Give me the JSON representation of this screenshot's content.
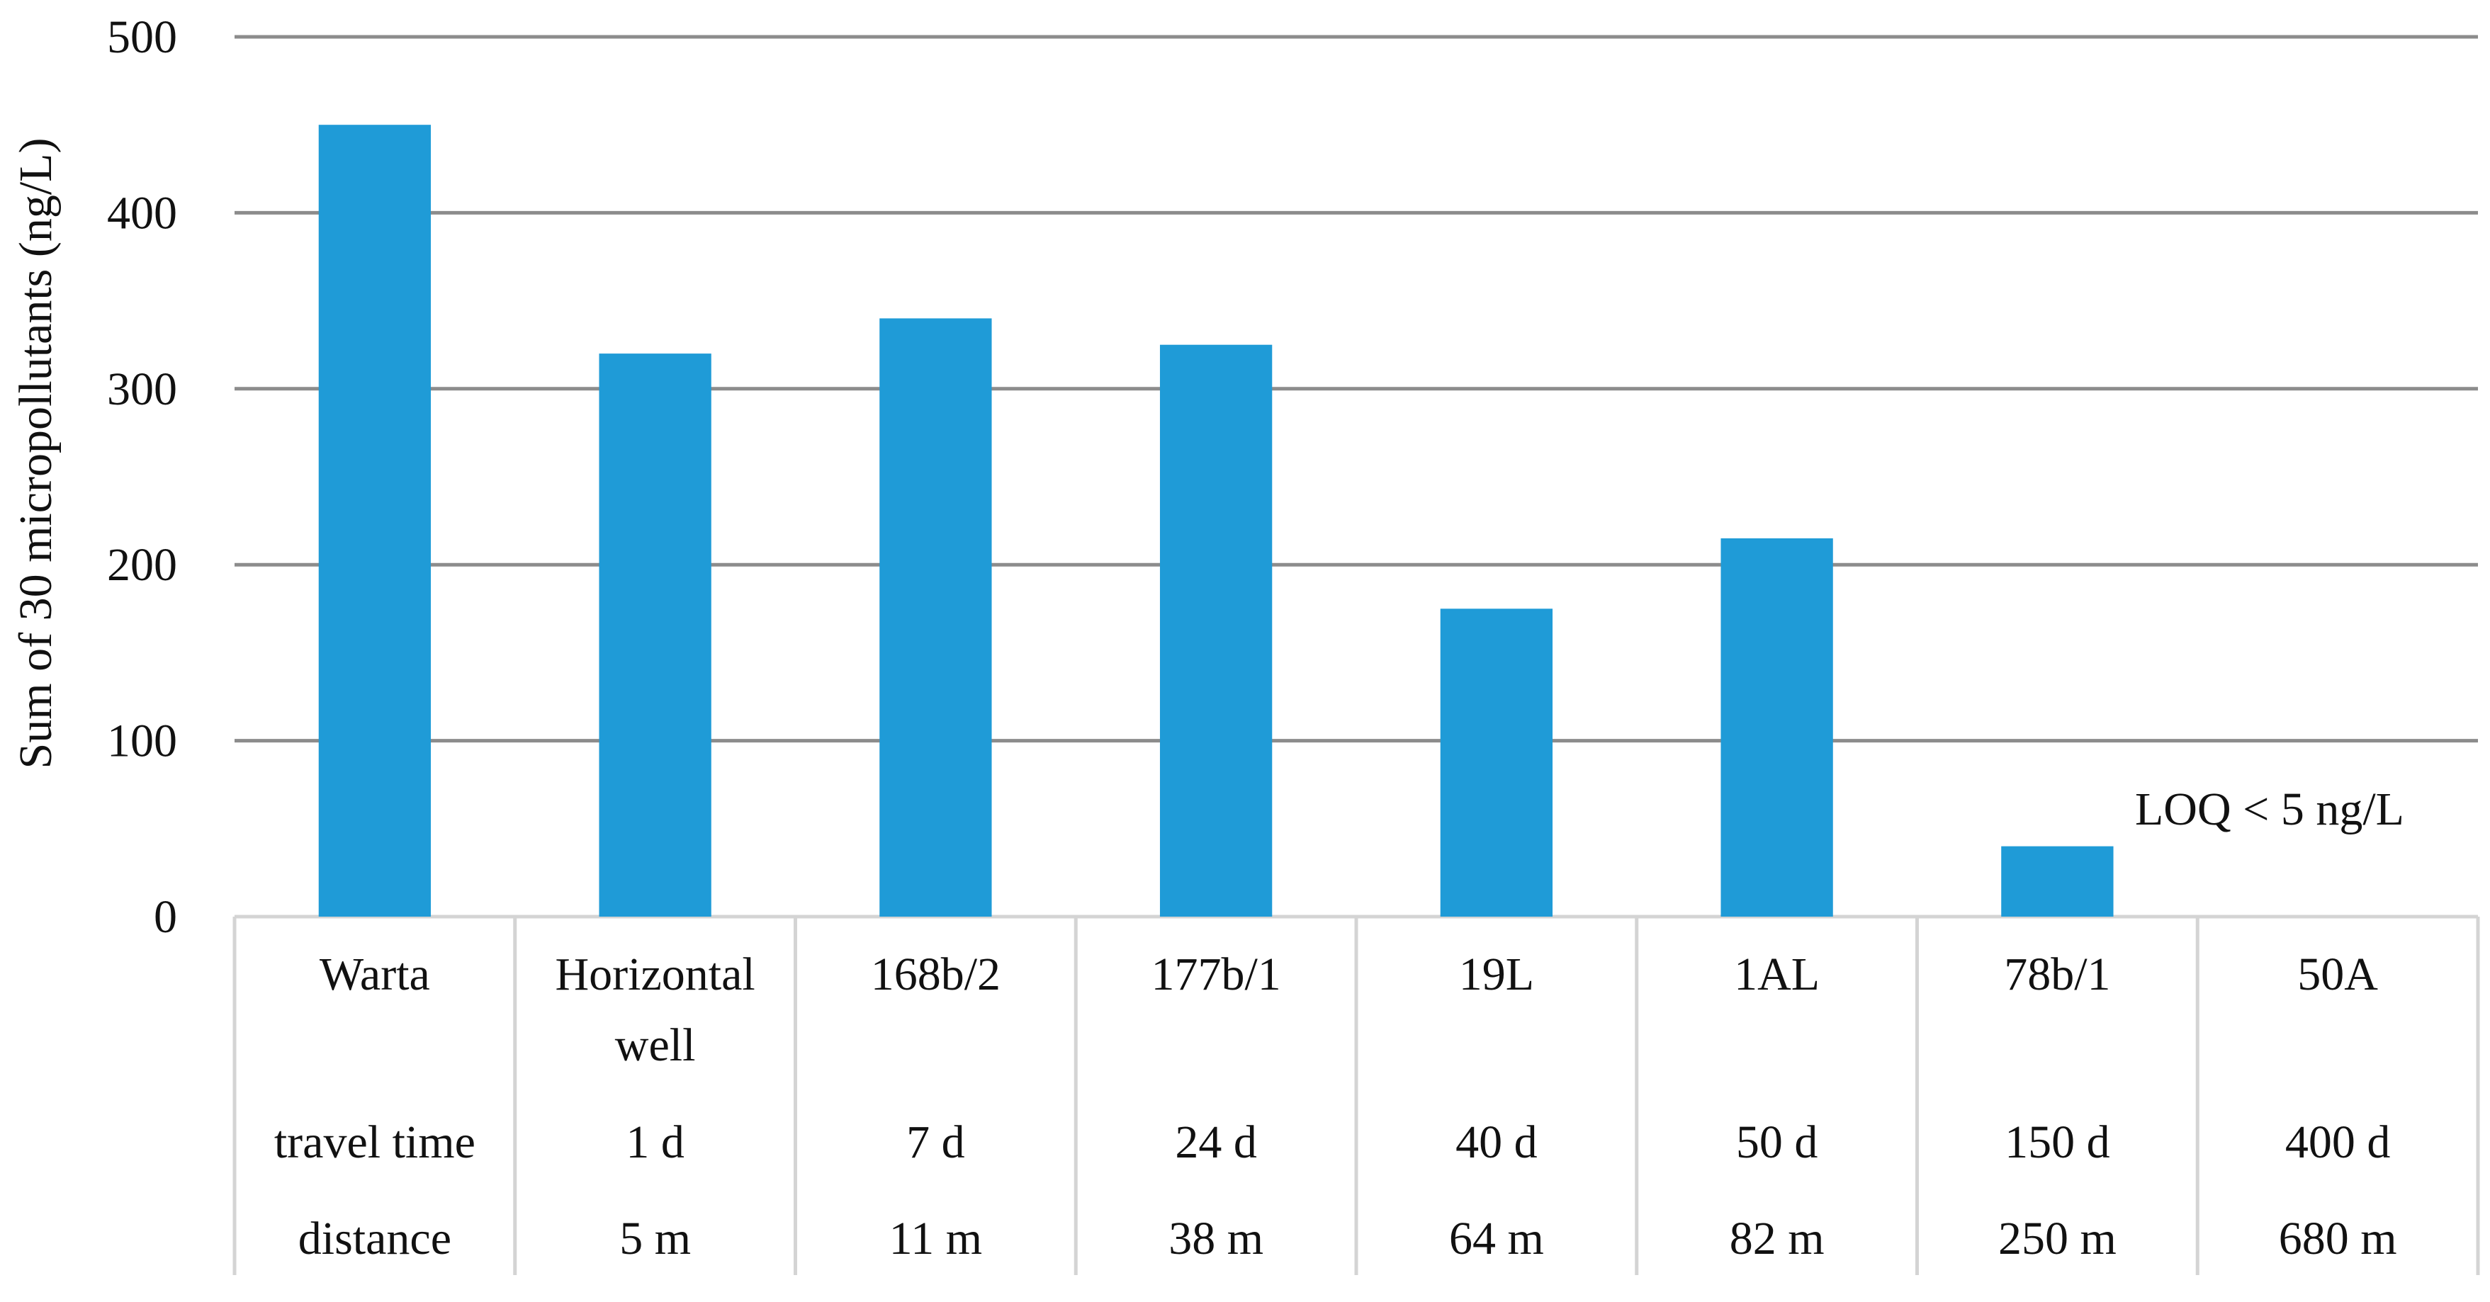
{
  "chart_data": {
    "type": "bar",
    "title": "",
    "xlabel": "",
    "ylabel": "Sum of 30 micropollutants (ng/L)",
    "ylim": [
      0,
      500
    ],
    "yticks": [
      0,
      100,
      200,
      300,
      400,
      500
    ],
    "grid": true,
    "color": "#1f9bd7",
    "categories": [
      "Warta",
      "Horizontal well",
      "168b/2",
      "177b/1",
      "19L",
      "1AL",
      "78b/1",
      "50A"
    ],
    "category_lines": [
      [
        "Warta"
      ],
      [
        "Horizontal",
        "well"
      ],
      [
        "168b/2"
      ],
      [
        "177b/1"
      ],
      [
        "19L"
      ],
      [
        "1AL"
      ],
      [
        "78b/1"
      ],
      [
        "50A"
      ]
    ],
    "values": [
      450,
      320,
      340,
      325,
      175,
      215,
      40,
      0
    ],
    "table_rows": [
      {
        "label": "travel time",
        "values": [
          "1 d",
          "7 d",
          "24 d",
          "40 d",
          "50 d",
          "150 d",
          "400 d"
        ]
      },
      {
        "label": "distance",
        "values": [
          "5 m",
          "11 m",
          "38 m",
          "64 m",
          "82 m",
          "250 m",
          "680 m"
        ]
      }
    ],
    "annotations": [
      {
        "text": "LOQ < 5 ng/L",
        "category": "50A"
      }
    ]
  }
}
